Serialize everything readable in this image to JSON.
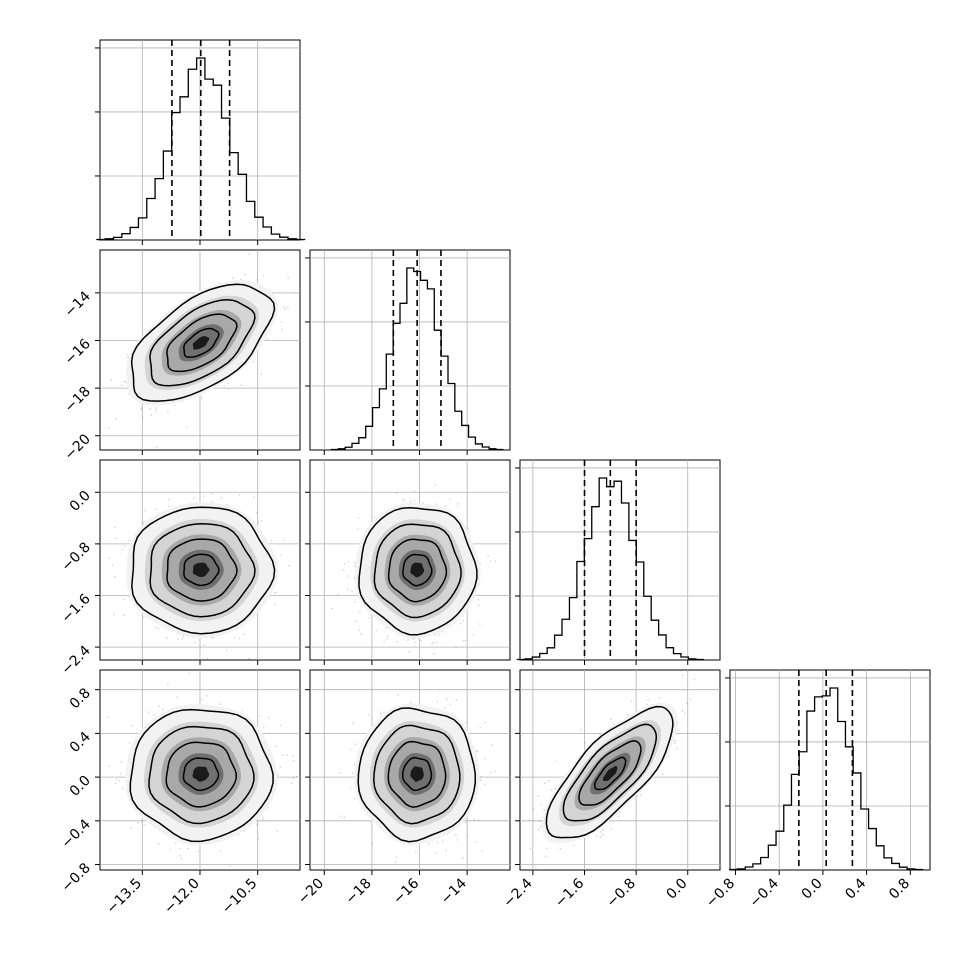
{
  "chart_data": {
    "type": "corner",
    "colors": {
      "line": "#000000",
      "grid": "#b0b0b0",
      "scatter": "#9a9a9a",
      "background": "#ffffff"
    },
    "variables": [
      {
        "index": 0,
        "range": [
          -14.6,
          -9.4
        ],
        "ticks": [
          -13.5,
          -12.0,
          -10.5
        ],
        "tick_labels": [
          "−13.5",
          "−12.0",
          "−10.5"
        ],
        "quantiles": [
          -12.73,
          -11.98,
          -11.23
        ],
        "mean": -11.98,
        "sd": 0.75
      },
      {
        "index": 1,
        "range": [
          -20.6,
          -12.2
        ],
        "ticks": [
          -20,
          -18,
          -16,
          -14
        ],
        "tick_labels": [
          "−20",
          "−18",
          "−16",
          "−14"
        ],
        "quantiles": [
          -17.1,
          -16.1,
          -15.1
        ],
        "mean": -16.1,
        "sd": 1.0
      },
      {
        "index": 2,
        "range": [
          -2.6,
          0.5
        ],
        "ticks": [
          -2.4,
          -1.6,
          -0.8,
          0.0
        ],
        "tick_labels": [
          "−2.4",
          "−1.6",
          "−0.8",
          "0.0"
        ],
        "quantiles": [
          -1.6,
          -1.2,
          -0.8
        ],
        "mean": -1.2,
        "sd": 0.4
      },
      {
        "index": 3,
        "range": [
          -0.85,
          0.98
        ],
        "ticks": [
          -0.8,
          -0.4,
          0.0,
          0.4,
          0.8
        ],
        "tick_labels": [
          "−0.8",
          "−0.4",
          "0.0",
          "0.4",
          "0.8"
        ],
        "quantiles": [
          -0.22,
          0.03,
          0.27
        ],
        "mean": 0.03,
        "sd": 0.245
      }
    ],
    "correlations": [
      [
        0,
        1,
        0.55
      ],
      [
        0,
        2,
        0.0
      ],
      [
        0,
        3,
        0.0
      ],
      [
        1,
        2,
        0.0
      ],
      [
        1,
        3,
        0.0
      ],
      [
        2,
        3,
        0.75
      ]
    ],
    "histogram_bins": 25,
    "quantile_levels": [
      0.16,
      0.5,
      0.84
    ],
    "grid": true
  }
}
